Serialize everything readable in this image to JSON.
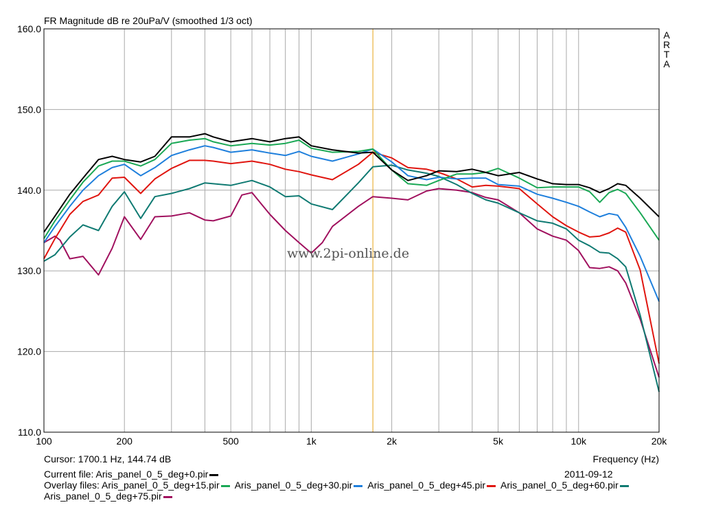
{
  "header": {
    "title": "FR Magnitude dB re 20uPa/V (smoothed 1/3 oct)"
  },
  "watermark": "www.2pi-online.de",
  "brand": [
    "A",
    "R",
    "T",
    "A"
  ],
  "footer": {
    "cursor_label": "Cursor:",
    "cursor_value": "1700.1 Hz, 144.74 dB",
    "frequency_label": "Frequency (Hz)",
    "current_file_label": "Current file:",
    "current_file": "Aris_panel_0_5_deg+0.pir",
    "date": "2011-09-12",
    "overlay_label": "Overlay files:"
  },
  "colors": {
    "cursor": "#e8a317",
    "grid": "#a9a9a9",
    "frame": "#000000"
  },
  "chart_data": {
    "type": "line",
    "title": "FR Magnitude dB re 20uPa/V (smoothed 1/3 oct)",
    "xlabel": "Frequency (Hz)",
    "ylabel": "",
    "xscale": "log",
    "xlim": [
      100,
      20000
    ],
    "ylim": [
      110,
      160
    ],
    "yticks": [
      "160.0",
      "150.0",
      "140.0",
      "130.0",
      "120.0",
      "110.0"
    ],
    "xticks": [
      {
        "value": 100,
        "label": "100"
      },
      {
        "value": 200,
        "label": "200"
      },
      {
        "value": 500,
        "label": "500"
      },
      {
        "value": 1000,
        "label": "1k"
      },
      {
        "value": 2000,
        "label": "2k"
      },
      {
        "value": 5000,
        "label": "5k"
      },
      {
        "value": 10000,
        "label": "10k"
      },
      {
        "value": 20000,
        "label": "20k"
      }
    ],
    "cursor": {
      "x": 1700.1,
      "y": 144.74
    },
    "grid": true,
    "series": [
      {
        "name": "Aris_panel_0_5_deg+0.pir",
        "color": "#000000",
        "x": [
          100,
          110,
          125,
          140,
          160,
          180,
          200,
          230,
          260,
          300,
          350,
          400,
          430,
          500,
          600,
          700,
          800,
          900,
          1000,
          1200,
          1500,
          1700,
          2000,
          2300,
          2700,
          3000,
          3500,
          4000,
          4500,
          5000,
          6000,
          7000,
          8000,
          9000,
          10000,
          11000,
          12000,
          13000,
          14000,
          15000,
          17000,
          20000
        ],
        "y": [
          134.8,
          136.8,
          139.5,
          141.5,
          143.8,
          144.2,
          143.8,
          143.5,
          144.2,
          146.6,
          146.6,
          147.0,
          146.6,
          146.0,
          146.4,
          146.0,
          146.4,
          146.6,
          145.5,
          145.0,
          144.6,
          144.7,
          142.5,
          141.2,
          141.8,
          142.4,
          142.3,
          142.6,
          142.2,
          141.8,
          142.2,
          141.4,
          140.8,
          140.7,
          140.7,
          140.3,
          139.7,
          140.2,
          140.8,
          140.6,
          139.0,
          136.7
        ]
      },
      {
        "name": "Aris_panel_0_5_deg+15.pir",
        "color": "#1aa855",
        "x": [
          100,
          110,
          125,
          140,
          160,
          180,
          200,
          230,
          260,
          300,
          350,
          400,
          430,
          500,
          600,
          700,
          800,
          900,
          1000,
          1200,
          1500,
          1700,
          2000,
          2300,
          2700,
          3000,
          3500,
          4000,
          4500,
          5000,
          6000,
          7000,
          8000,
          9000,
          10000,
          11000,
          12000,
          13000,
          14000,
          15000,
          17000,
          20000
        ],
        "y": [
          134.0,
          136.2,
          138.8,
          141.0,
          143.0,
          143.6,
          143.6,
          143.0,
          143.8,
          145.8,
          146.2,
          146.4,
          146.0,
          145.5,
          145.8,
          145.6,
          145.8,
          146.2,
          145.2,
          144.7,
          144.8,
          145.1,
          142.5,
          140.8,
          140.6,
          141.2,
          142.0,
          142.0,
          142.2,
          142.7,
          141.5,
          140.3,
          140.4,
          140.4,
          140.4,
          139.8,
          138.5,
          139.7,
          140.1,
          139.6,
          137.2,
          133.8
        ]
      },
      {
        "name": "Aris_panel_0_5_deg+30.pir",
        "color": "#1e7fdc",
        "x": [
          100,
          110,
          125,
          140,
          160,
          180,
          200,
          230,
          260,
          300,
          350,
          400,
          430,
          500,
          600,
          700,
          800,
          900,
          1000,
          1200,
          1500,
          1700,
          2000,
          2300,
          2700,
          3000,
          3500,
          4000,
          4500,
          5000,
          6000,
          7000,
          8000,
          9000,
          10000,
          11000,
          12000,
          13000,
          14000,
          15000,
          17000,
          20000
        ],
        "y": [
          133.5,
          135.5,
          138.0,
          140.0,
          141.8,
          142.8,
          143.2,
          141.8,
          142.8,
          144.3,
          145.0,
          145.5,
          145.3,
          144.7,
          145.0,
          144.6,
          144.3,
          144.8,
          144.2,
          143.6,
          144.5,
          145.1,
          143.5,
          141.8,
          141.3,
          141.6,
          141.4,
          141.5,
          141.5,
          140.7,
          140.5,
          139.5,
          139.0,
          138.5,
          138.0,
          137.3,
          136.7,
          137.1,
          136.9,
          135.4,
          131.8,
          126.2
        ]
      },
      {
        "name": "Aris_panel_0_5_deg+45.pir",
        "color": "#e0150f",
        "x": [
          100,
          110,
          125,
          140,
          160,
          180,
          200,
          230,
          260,
          300,
          350,
          400,
          430,
          500,
          600,
          700,
          800,
          900,
          1000,
          1200,
          1500,
          1700,
          2000,
          2300,
          2700,
          3000,
          3500,
          4000,
          4500,
          5000,
          6000,
          7000,
          8000,
          9000,
          10000,
          11000,
          12000,
          13000,
          14000,
          15000,
          17000,
          20000
        ],
        "y": [
          131.5,
          134.0,
          137.0,
          138.6,
          139.4,
          141.5,
          141.6,
          139.6,
          141.4,
          142.7,
          143.7,
          143.7,
          143.6,
          143.3,
          143.6,
          143.2,
          142.6,
          142.3,
          141.9,
          141.3,
          143.2,
          144.7,
          144.0,
          142.8,
          142.6,
          142.2,
          141.4,
          140.4,
          140.6,
          140.5,
          140.2,
          138.3,
          136.7,
          135.6,
          134.8,
          134.2,
          134.3,
          134.7,
          135.3,
          134.8,
          130.1,
          118.5
        ]
      },
      {
        "name": "Aris_panel_0_5_deg+60.pir",
        "color": "#0f7a72",
        "x": [
          100,
          110,
          125,
          140,
          160,
          180,
          200,
          230,
          260,
          300,
          350,
          400,
          430,
          500,
          600,
          700,
          800,
          900,
          1000,
          1200,
          1500,
          1700,
          2000,
          2300,
          2700,
          3000,
          3500,
          4000,
          4500,
          5000,
          6000,
          7000,
          8000,
          9000,
          10000,
          11000,
          12000,
          13000,
          14000,
          15000,
          17000,
          20000
        ],
        "y": [
          131.2,
          132.0,
          134.2,
          135.7,
          135.0,
          138.0,
          139.8,
          136.5,
          139.2,
          139.6,
          140.2,
          140.9,
          140.8,
          140.6,
          141.2,
          140.4,
          139.2,
          139.3,
          138.3,
          137.6,
          140.9,
          142.9,
          143.1,
          142.5,
          142.1,
          141.7,
          140.7,
          139.6,
          138.8,
          138.4,
          137.2,
          136.2,
          135.9,
          135.2,
          133.8,
          133.1,
          132.3,
          132.2,
          131.5,
          130.5,
          124.5,
          115.0
        ]
      },
      {
        "name": "Aris_panel_0_5_deg+75.pir",
        "color": "#a0105e",
        "x": [
          100,
          110,
          115,
          125,
          140,
          160,
          180,
          200,
          230,
          260,
          300,
          350,
          400,
          430,
          500,
          550,
          600,
          700,
          800,
          900,
          1000,
          1100,
          1200,
          1500,
          1700,
          2000,
          2300,
          2700,
          3000,
          3500,
          4000,
          4500,
          5000,
          6000,
          7000,
          8000,
          9000,
          10000,
          11000,
          12000,
          13000,
          14000,
          15000,
          17000,
          20000
        ],
        "y": [
          133.5,
          134.3,
          133.8,
          131.5,
          131.8,
          129.5,
          132.8,
          136.7,
          133.9,
          136.7,
          136.8,
          137.2,
          136.3,
          136.2,
          136.8,
          139.4,
          139.7,
          137.0,
          135.0,
          133.5,
          132.2,
          133.5,
          135.5,
          138.0,
          139.2,
          139.0,
          138.8,
          139.9,
          140.2,
          140.0,
          139.7,
          139.1,
          138.8,
          137.2,
          135.2,
          134.3,
          133.8,
          132.5,
          130.4,
          130.3,
          130.5,
          130.0,
          128.5,
          124.0,
          116.8
        ]
      }
    ]
  }
}
